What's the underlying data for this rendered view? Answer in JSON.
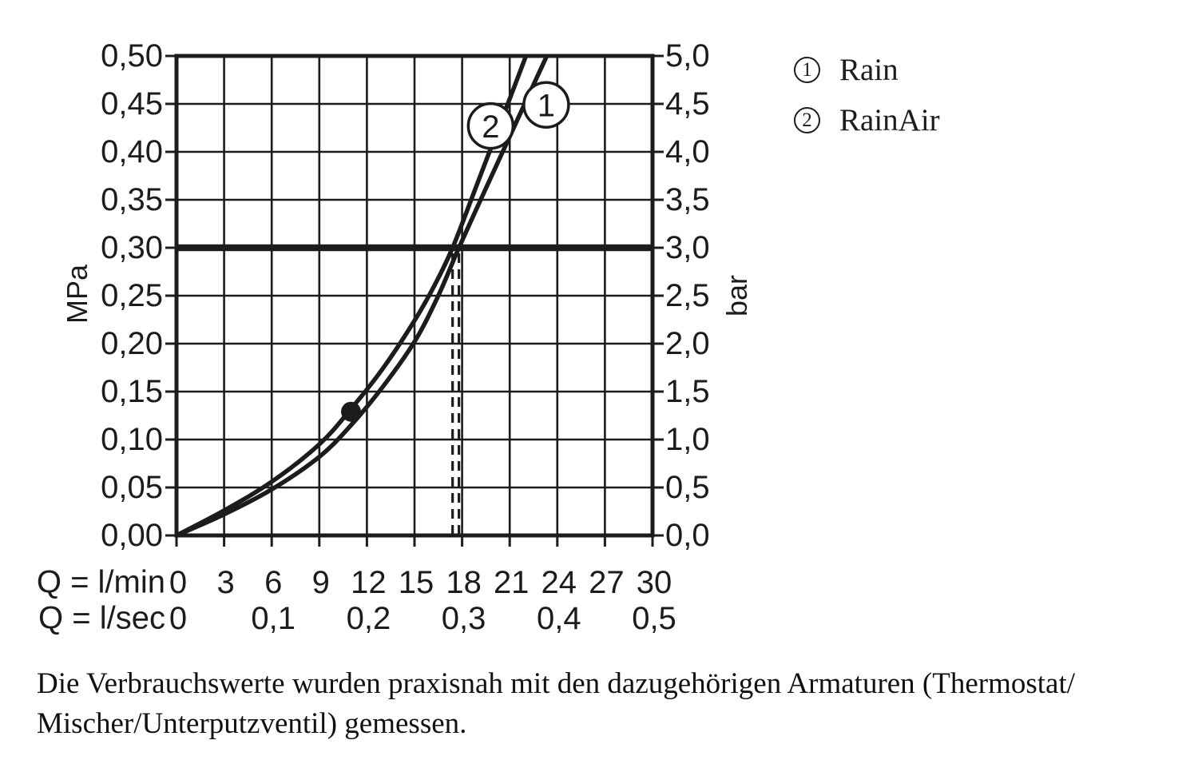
{
  "colors": {
    "ink": "#1c1c1c",
    "background": "#ffffff"
  },
  "chart_data": {
    "type": "line",
    "title": "",
    "grid": true,
    "x_axis": {
      "lmin_label": "Q = l/min",
      "lsec_label": "Q = l/sec",
      "range_lmin": [
        0,
        30
      ],
      "lmin_ticks": [
        {
          "label": "0",
          "q": 0
        },
        {
          "label": "3",
          "q": 3
        },
        {
          "label": "6",
          "q": 6
        },
        {
          "label": "9",
          "q": 9
        },
        {
          "label": "12",
          "q": 12
        },
        {
          "label": "15",
          "q": 15
        },
        {
          "label": "18",
          "q": 18
        },
        {
          "label": "21",
          "q": 21
        },
        {
          "label": "24",
          "q": 24
        },
        {
          "label": "27",
          "q": 27
        },
        {
          "label": "30",
          "q": 30
        }
      ],
      "lsec_ticks": [
        {
          "label": "0",
          "q": 0
        },
        {
          "label": "0,1",
          "q": 6
        },
        {
          "label": "0,2",
          "q": 12
        },
        {
          "label": "0,3",
          "q": 18
        },
        {
          "label": "0,4",
          "q": 24
        },
        {
          "label": "0,5",
          "q": 30
        }
      ]
    },
    "y_axis_left": {
      "unit": "MPa",
      "range": [
        0,
        0.5
      ],
      "tick_labels": [
        "0,50",
        "0,45",
        "0,40",
        "0,35",
        "0,30",
        "0,25",
        "0,20",
        "0,15",
        "0,10",
        "0,05",
        "0,00"
      ]
    },
    "y_axis_right": {
      "unit": "bar",
      "range": [
        0,
        5
      ],
      "tick_labels": [
        "5,0",
        "4,5",
        "4,0",
        "3,5",
        "3,0",
        "2,5",
        "2,0",
        "1,5",
        "1,0",
        "0,5",
        "0,0"
      ]
    },
    "series": [
      {
        "symbol": "1",
        "name": "Rain",
        "points": [
          [
            0,
            0
          ],
          [
            3,
            0.022
          ],
          [
            6,
            0.048
          ],
          [
            9,
            0.082
          ],
          [
            11,
            0.115
          ],
          [
            13,
            0.155
          ],
          [
            15,
            0.202
          ],
          [
            16.5,
            0.25
          ],
          [
            17.8,
            0.3
          ],
          [
            19.5,
            0.362
          ],
          [
            21,
            0.416
          ],
          [
            22.5,
            0.47
          ],
          [
            23.9,
            0.52
          ]
        ]
      },
      {
        "symbol": "2",
        "name": "RainAir",
        "points": [
          [
            0,
            0
          ],
          [
            3,
            0.026
          ],
          [
            6,
            0.056
          ],
          [
            9,
            0.095
          ],
          [
            11,
            0.132
          ],
          [
            13,
            0.174
          ],
          [
            15,
            0.224
          ],
          [
            16.3,
            0.262
          ],
          [
            17.4,
            0.3
          ],
          [
            18.8,
            0.36
          ],
          [
            20,
            0.412
          ],
          [
            21.2,
            0.464
          ],
          [
            22.3,
            0.512
          ]
        ]
      }
    ],
    "series_labels_on_chart": [
      {
        "symbol": "1",
        "q": 23.3,
        "mpa": 0.449
      },
      {
        "symbol": "2",
        "q": 19.8,
        "mpa": 0.427
      }
    ],
    "reference_line": {
      "mpa": 0.3,
      "bar": 3.0
    },
    "dashed_guides_q_lmin": [
      17.4,
      17.8
    ],
    "marker_dot": {
      "q_lmin": 11,
      "mpa": 0.129
    }
  },
  "legend": {
    "items": [
      {
        "symbol": "1",
        "label": "Rain"
      },
      {
        "symbol": "2",
        "label": "RainAir"
      }
    ]
  },
  "footnote": {
    "line1": "Die Verbrauchswerte wurden praxisnah mit den dazugehörigen Armaturen (Thermostat/",
    "line2": "Mischer/Unterputzventil) gemessen."
  }
}
